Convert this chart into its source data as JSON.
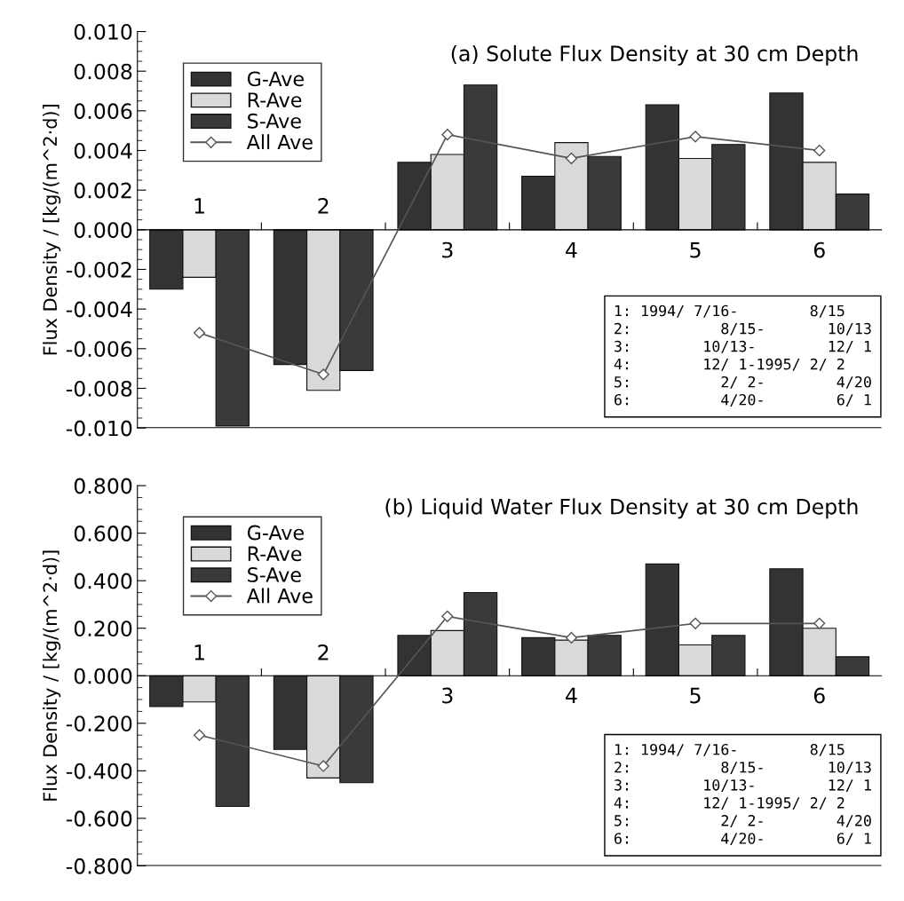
{
  "chart_data": [
    {
      "type": "bar",
      "title": "(a) Solute Flux Density at 30 cm Depth",
      "ylabel": "Flux Density / [kg/(m^2·d)]",
      "categories": [
        "1",
        "2",
        "3",
        "4",
        "5",
        "6"
      ],
      "series": [
        {
          "name": "G-Ave",
          "color": "#333333",
          "values": [
            -0.003,
            -0.0068,
            0.0034,
            0.0027,
            0.0063,
            0.0069
          ]
        },
        {
          "name": "R-Ave",
          "color": "#d9d9d9",
          "values": [
            -0.0024,
            -0.0081,
            0.0038,
            0.0044,
            0.0036,
            0.0034
          ]
        },
        {
          "name": "S-Ave",
          "color": "#3a3a3a",
          "values": [
            -0.0099,
            -0.0071,
            0.0073,
            0.0037,
            0.0043,
            0.0018
          ]
        },
        {
          "name": "All Ave",
          "type": "line",
          "color": "#555555",
          "marker": "diamond",
          "values": [
            -0.0052,
            -0.0073,
            0.0048,
            0.0036,
            0.0047,
            0.004
          ]
        }
      ],
      "ylim": [
        -0.01,
        0.01
      ],
      "yticks": [
        {
          "value": -0.01,
          "label": "-0.010"
        },
        {
          "value": -0.008,
          "label": "-0.008"
        },
        {
          "value": -0.006,
          "label": "-0.006"
        },
        {
          "value": -0.004,
          "label": "-0.004"
        },
        {
          "value": -0.002,
          "label": "-0.002"
        },
        {
          "value": 0,
          "label": "0.000"
        },
        {
          "value": 0.002,
          "label": "0.002"
        },
        {
          "value": 0.004,
          "label": "0.004"
        },
        {
          "value": 0.006,
          "label": "0.006"
        },
        {
          "value": 0.008,
          "label": "0.008"
        },
        {
          "value": 0.01,
          "label": "0.010"
        }
      ],
      "legend": "top left",
      "grid": false,
      "annotations": [
        "1: 1994/ 7/16-        8/15",
        "2:          8/15-       10/13",
        "3:        10/13-        12/ 1",
        "4:        12/ 1-1995/ 2/ 2",
        "5:          2/ 2-        4/20",
        "6:          4/20-        6/ 1"
      ]
    },
    {
      "type": "bar",
      "title": "(b) Liquid Water Flux Density at 30 cm Depth",
      "ylabel": "Flux Density / [kg/(m^2·d)]",
      "categories": [
        "1",
        "2",
        "3",
        "4",
        "5",
        "6"
      ],
      "series": [
        {
          "name": "G-Ave",
          "color": "#333333",
          "values": [
            -0.13,
            -0.31,
            0.17,
            0.16,
            0.47,
            0.45
          ]
        },
        {
          "name": "R-Ave",
          "color": "#d9d9d9",
          "values": [
            -0.11,
            -0.43,
            0.19,
            0.15,
            0.13,
            0.2
          ]
        },
        {
          "name": "S-Ave",
          "color": "#3a3a3a",
          "values": [
            -0.55,
            -0.45,
            0.35,
            0.17,
            0.17,
            0.08
          ]
        },
        {
          "name": "All Ave",
          "type": "line",
          "color": "#555555",
          "marker": "diamond",
          "values": [
            -0.25,
            -0.38,
            0.25,
            0.16,
            0.22,
            0.22
          ]
        }
      ],
      "ylim": [
        -0.8,
        0.8
      ],
      "yticks": [
        {
          "value": -0.8,
          "label": "-0.800"
        },
        {
          "value": -0.6,
          "label": "-0.600"
        },
        {
          "value": -0.4,
          "label": "-0.400"
        },
        {
          "value": -0.2,
          "label": "-0.200"
        },
        {
          "value": 0,
          "label": "0.000"
        },
        {
          "value": 0.2,
          "label": "0.200"
        },
        {
          "value": 0.4,
          "label": "0.400"
        },
        {
          "value": 0.6,
          "label": "0.600"
        },
        {
          "value": 0.8,
          "label": "0.800"
        }
      ],
      "legend": "top left",
      "grid": false,
      "annotations": [
        "1: 1994/ 7/16-        8/15",
        "2:          8/15-       10/13",
        "3:        10/13-        12/ 1",
        "4:        12/ 1-1995/ 2/ 2",
        "5:          2/ 2-        4/20",
        "6:          4/20-        6/ 1"
      ]
    }
  ]
}
